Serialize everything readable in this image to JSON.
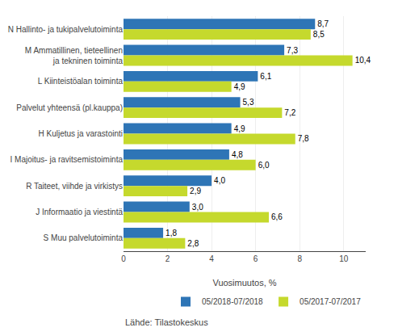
{
  "chart_data": {
    "type": "bar",
    "orientation": "horizontal",
    "categories": [
      "N Hallinto- ja tukipalvelutoiminta",
      "M Ammatillinen, tieteellinen\n ja tekninen toiminta",
      "L Kiinteistöalan toiminta",
      "Palvelut yhteensä (pl.kauppa)",
      "H Kuljetus ja varastointi",
      "I Majoitus- ja ravitsemistoiminta",
      "R Taiteet, viihde ja virkistys",
      "J Informaatio ja viestintä",
      "S Muu palvelutoiminta"
    ],
    "series": [
      {
        "name": "05/2018-07/2018",
        "color": "#2E75B6",
        "values": [
          8.7,
          7.3,
          6.1,
          5.3,
          4.9,
          4.8,
          4.0,
          3.0,
          1.8
        ],
        "value_labels": [
          "8,7",
          "7,3",
          "6,1",
          "5,3",
          "4,9",
          "4,8",
          "4,0",
          "3,0",
          "1,8"
        ]
      },
      {
        "name": "05/2017-07/2017",
        "color": "#C5D92D",
        "values": [
          8.5,
          10.4,
          4.9,
          7.2,
          7.8,
          6.0,
          2.9,
          6.6,
          2.8
        ],
        "value_labels": [
          "8,5",
          "10,4",
          "4,9",
          "7,2",
          "7,8",
          "6,0",
          "2,9",
          "6,6",
          "2,8"
        ]
      }
    ],
    "xlabel": "Vuosimuutos, %",
    "xlim": [
      0,
      11
    ],
    "xticks": [
      0,
      2,
      4,
      6,
      8,
      10
    ],
    "grid": true,
    "legend": "lower right",
    "data_labels": true,
    "annotations": [
      "Lähde: Tilastokeskus"
    ]
  }
}
